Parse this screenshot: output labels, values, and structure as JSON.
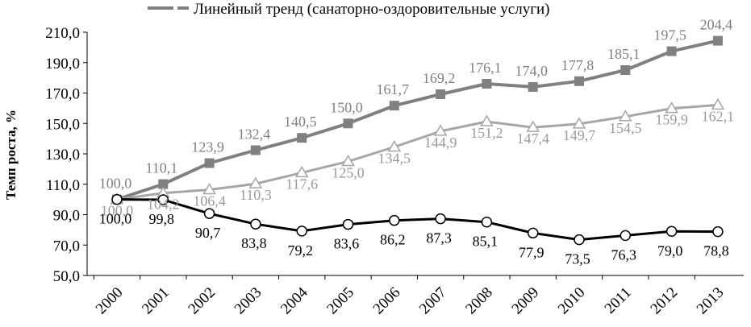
{
  "chart_data": {
    "type": "line",
    "ylabel": "Темп роста, %",
    "ylim": [
      50,
      210
    ],
    "yticks": [
      "50,0",
      "70,0",
      "90,0",
      "110,0",
      "130,0",
      "150,0",
      "170,0",
      "190,0",
      "210,0"
    ],
    "categories": [
      "2000",
      "2001",
      "2002",
      "2003",
      "2004",
      "2005",
      "2006",
      "2007",
      "2008",
      "2009",
      "2010",
      "2011",
      "2012",
      "2013"
    ],
    "legend": {
      "placement": "top",
      "entries": [
        "Линейный тренд (санаторно-оздоровительные услуги)"
      ]
    },
    "series": [
      {
        "marker": "square",
        "color": "#808080",
        "values": [
          100.0,
          110.1,
          123.9,
          132.4,
          140.5,
          150.0,
          161.7,
          169.2,
          176.1,
          174.0,
          177.8,
          185.1,
          197.5,
          204.4
        ],
        "labels": [
          "100,0",
          "110,1",
          "123,9",
          "132,4",
          "140,5",
          "150,0",
          "161,7",
          "169,2",
          "176,1",
          "174,0",
          "177,8",
          "185,1",
          "197,5",
          "204,4"
        ]
      },
      {
        "marker": "triangle",
        "color": "#a6a6a6",
        "values": [
          100.0,
          104.2,
          106.4,
          110.3,
          117.6,
          125.0,
          134.5,
          144.9,
          151.2,
          147.4,
          149.7,
          154.5,
          159.9,
          162.1
        ],
        "labels": [
          "100,0",
          "104,2",
          "106,4",
          "110,3",
          "117,6",
          "125,0",
          "134,5",
          "144,9",
          "151,2",
          "147,4",
          "149,7",
          "154,5",
          "159,9",
          "162,1"
        ]
      },
      {
        "marker": "circle",
        "color": "#000000",
        "values": [
          100.0,
          99.8,
          90.7,
          83.8,
          79.2,
          83.6,
          86.2,
          87.3,
          85.1,
          77.9,
          73.5,
          76.3,
          79.0,
          78.8
        ],
        "labels": [
          "100,0",
          "99,8",
          "90,7",
          "83,8",
          "79,2",
          "83,6",
          "86,2",
          "87,3",
          "85,1",
          "77,9",
          "73,5",
          "76,3",
          "79,0",
          "78,8"
        ]
      }
    ]
  }
}
